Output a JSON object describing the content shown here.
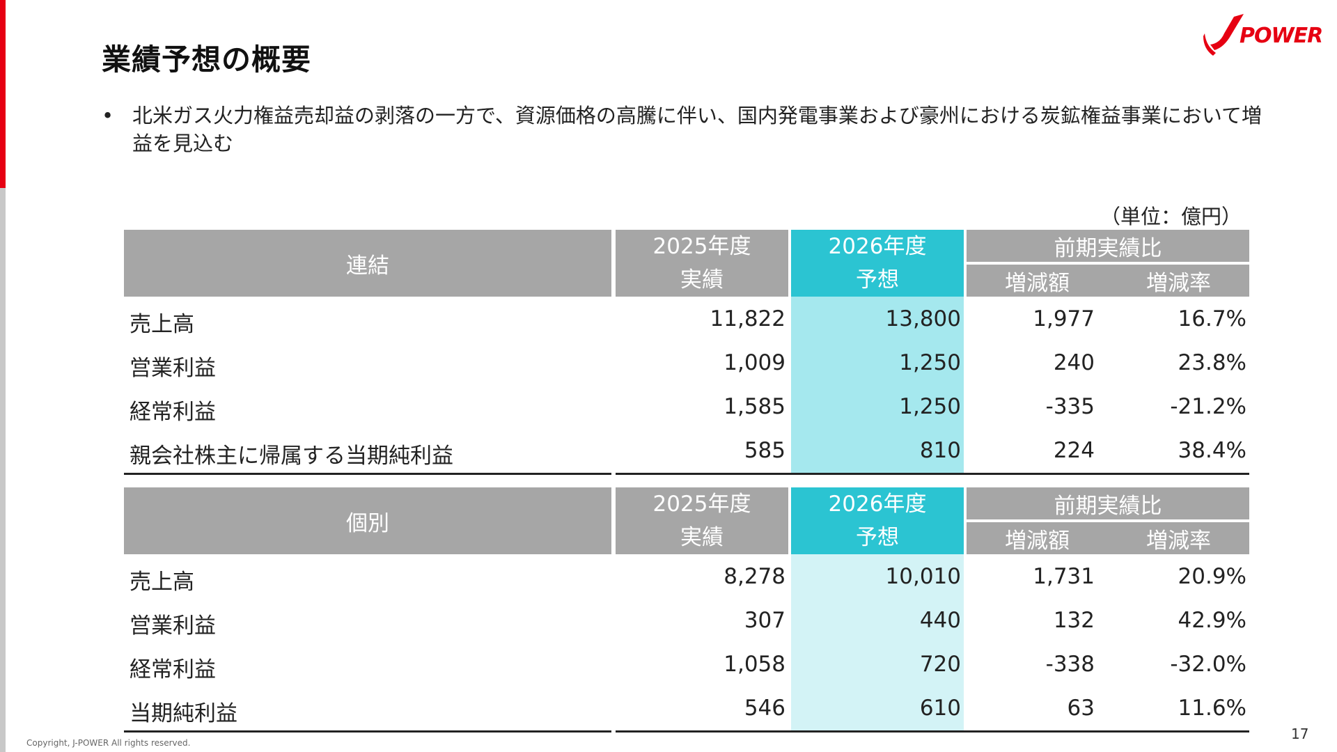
{
  "page": {
    "title": "業績予想の概要",
    "bullet": "北米ガス火力権益売却益の剥落の一方で、資源価格の高騰に伴い、国内発電事業および豪州における炭鉱権益事業において増益を見込む",
    "unit": "（単位：億円）",
    "logo_text": "POWER",
    "copyright": "Copyright, J-POWER All rights reserved.",
    "page_number": "17",
    "colors": {
      "accent": "#e60012",
      "header_gray": "#a6a6a6",
      "header_highlight": "#2bc4d2",
      "highlight_consolidated": "#a5e8ee",
      "highlight_nonconsolidated": "#d3f3f6"
    }
  },
  "consolidated": {
    "header": {
      "label": "連結",
      "col1_line1": "2025年度",
      "col1_line2": "実績",
      "col2_line1": "2026年度",
      "col2_line2": "予想",
      "comparison": "前期実績比",
      "change": "増減額",
      "rate": "増減率"
    },
    "rows": [
      {
        "label": "売上高",
        "fy2025": "11,822",
        "fy2026": "13,800",
        "change": "1,977",
        "rate": "16.7%"
      },
      {
        "label": "営業利益",
        "fy2025": "1,009",
        "fy2026": "1,250",
        "change": "240",
        "rate": "23.8%"
      },
      {
        "label": "経常利益",
        "fy2025": "1,585",
        "fy2026": "1,250",
        "change": "-335",
        "rate": "-21.2%"
      },
      {
        "label": "親会社株主に帰属する当期純利益",
        "fy2025": "585",
        "fy2026": "810",
        "change": "224",
        "rate": "38.4%"
      }
    ]
  },
  "nonconsolidated": {
    "header": {
      "label": "個別",
      "col1_line1": "2025年度",
      "col1_line2": "実績",
      "col2_line1": "2026年度",
      "col2_line2": "予想",
      "comparison": "前期実績比",
      "change": "増減額",
      "rate": "増減率"
    },
    "rows": [
      {
        "label": "売上高",
        "fy2025": "8,278",
        "fy2026": "10,010",
        "change": "1,731",
        "rate": "20.9%"
      },
      {
        "label": "営業利益",
        "fy2025": "307",
        "fy2026": "440",
        "change": "132",
        "rate": "42.9%"
      },
      {
        "label": "経常利益",
        "fy2025": "1,058",
        "fy2026": "720",
        "change": "-338",
        "rate": "-32.0%"
      },
      {
        "label": "当期純利益",
        "fy2025": "546",
        "fy2026": "610",
        "change": "63",
        "rate": "11.6%"
      }
    ]
  }
}
